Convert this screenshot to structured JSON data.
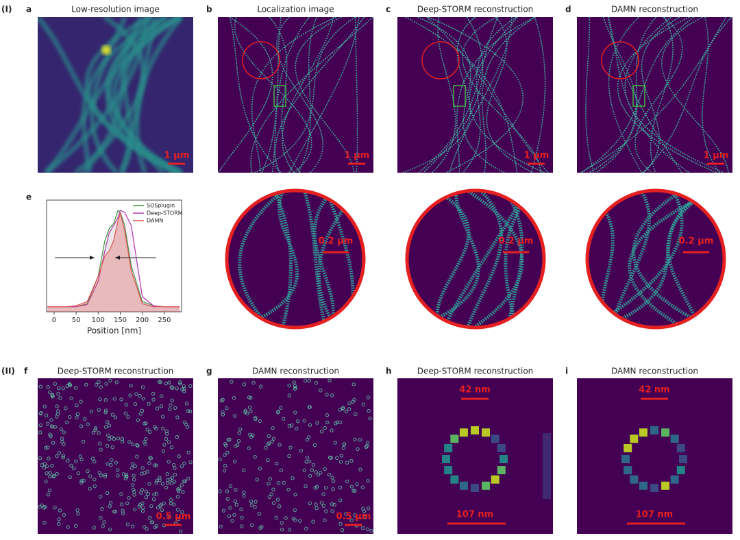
{
  "section_labels": [
    "(I)",
    "(II)"
  ],
  "row1": [
    {
      "letter": "a",
      "title": "Low-resolution image",
      "scale_bars": [
        "1 μm"
      ]
    },
    {
      "letter": "b",
      "title": "Localization image",
      "scale_bars": [
        "1 μm"
      ]
    },
    {
      "letter": "c",
      "title": "Deep-STORM reconstruction",
      "scale_bars": [
        "1 μm"
      ]
    },
    {
      "letter": "d",
      "title": "DAMN reconstruction",
      "scale_bars": [
        "1 μm"
      ]
    }
  ],
  "zooms": [
    "0.2 μm",
    "0.2 μm",
    "0.2 μm"
  ],
  "row2": [
    {
      "letter": "f",
      "title": "Deep-STORM reconstruction",
      "scale_bars": [
        "0.5 μm"
      ]
    },
    {
      "letter": "g",
      "title": "DAMN reconstruction",
      "scale_bars": [
        "0.5 μm"
      ]
    },
    {
      "letter": "h",
      "title": "Deep-STORM reconstruction",
      "scale_bars": [
        "42 nm",
        "107 nm"
      ]
    },
    {
      "letter": "i",
      "title": "DAMN reconstruction",
      "scale_bars": [
        "42 nm",
        "107 nm"
      ]
    }
  ],
  "chart_data": {
    "type": "line",
    "panel_label": "e",
    "xlabel": "Position [nm]",
    "x": [
      -15,
      0,
      25,
      50,
      75,
      100,
      115,
      125,
      135,
      145,
      150,
      160,
      175,
      200,
      225,
      250,
      285
    ],
    "xlim": [
      -17,
      289
    ],
    "xticks": [
      0,
      50,
      100,
      150,
      200,
      250
    ],
    "ylim": [
      0,
      1.1
    ],
    "series": [
      {
        "name": "SOSplugin",
        "color": "#3a9a3a",
        "values": [
          0.05,
          0.05,
          0.05,
          0.05,
          0.08,
          0.35,
          0.7,
          0.82,
          0.87,
          1.0,
          0.98,
          0.85,
          0.45,
          0.1,
          0.06,
          0.05,
          0.05
        ]
      },
      {
        "name": "Deep-STORM",
        "color": "#b23ab2",
        "values": [
          0.05,
          0.05,
          0.05,
          0.05,
          0.07,
          0.3,
          0.6,
          0.78,
          0.85,
          0.93,
          1.0,
          0.98,
          0.85,
          0.15,
          0.06,
          0.05,
          0.05
        ]
      },
      {
        "name": "DAMN",
        "color": "#e05050",
        "values": [
          0.05,
          0.05,
          0.05,
          0.06,
          0.1,
          0.35,
          0.55,
          0.6,
          0.7,
          0.9,
          0.97,
          0.8,
          0.4,
          0.08,
          0.05,
          0.05,
          0.05
        ]
      }
    ],
    "legend": "upper right"
  }
}
